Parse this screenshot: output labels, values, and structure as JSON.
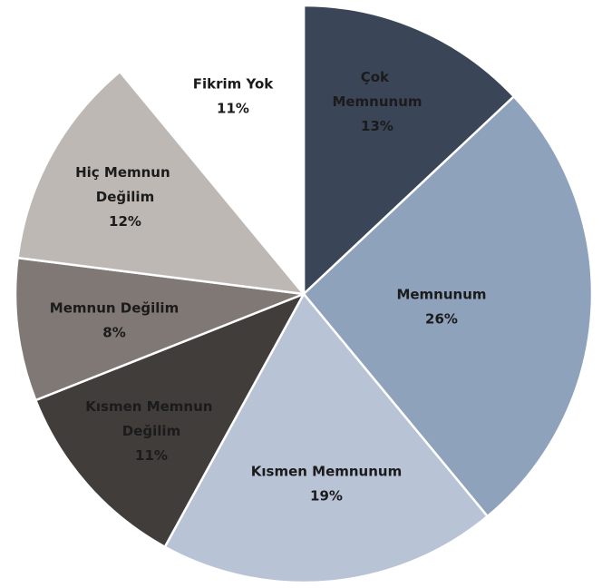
{
  "chart_data": {
    "type": "pie",
    "categories": [
      "Çok Memnunum",
      "Memnunum",
      "Kısmen Memnunum",
      "Kısmen Memnun Değilim",
      "Memnun Değilim",
      "Hiç Memnun Değilim",
      "Fikrim Yok"
    ],
    "values": [
      13,
      26,
      19,
      11,
      8,
      12,
      11
    ],
    "value_labels": [
      "13%",
      "26%",
      "19%",
      "11%",
      "8%",
      "12%",
      "11%"
    ],
    "colors": [
      "#3b4558",
      "#8ea2bc",
      "#b8c3d6",
      "#413d3b",
      "#7f7875",
      "#bdb8b4",
      "#ffffff"
    ]
  }
}
